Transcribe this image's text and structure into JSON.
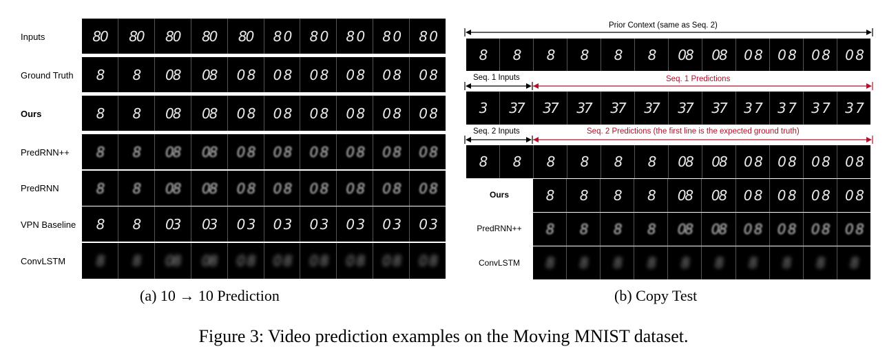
{
  "panel_a": {
    "rows": [
      {
        "label": "Inputs",
        "bold": false
      },
      {
        "label": "Ground Truth",
        "bold": false
      },
      {
        "label": "Ours",
        "bold": true
      },
      {
        "label": "PredRNN++",
        "bold": false
      },
      {
        "label": "PredRNN",
        "bold": false
      },
      {
        "label": "VPN Baseline",
        "bold": false
      },
      {
        "label": "ConvLSTM",
        "bold": false
      }
    ],
    "caption": "(a) 10 → 10 Prediction"
  },
  "panel_b": {
    "prior_context": "Prior Context (same as Seq. 2)",
    "seq1_inputs": "Seq. 1 Inputs",
    "seq1_predictions": "Seq. 1 Predictions",
    "seq2_inputs": "Seq. 2 Inputs",
    "seq2_predictions": "Seq. 2 Predictions (the first line is the expected ground truth)",
    "rows": [
      {
        "label": "Ours",
        "bold": true
      },
      {
        "label": "PredRNN++",
        "bold": false
      },
      {
        "label": "ConvLSTM",
        "bold": false
      }
    ],
    "caption": "(b) Copy Test"
  },
  "figure_caption": "Figure 3: Video prediction examples on the Moving MNIST dataset.",
  "colors": {
    "prediction_arrow": "#b0102a",
    "context_arrow": "#000000"
  }
}
